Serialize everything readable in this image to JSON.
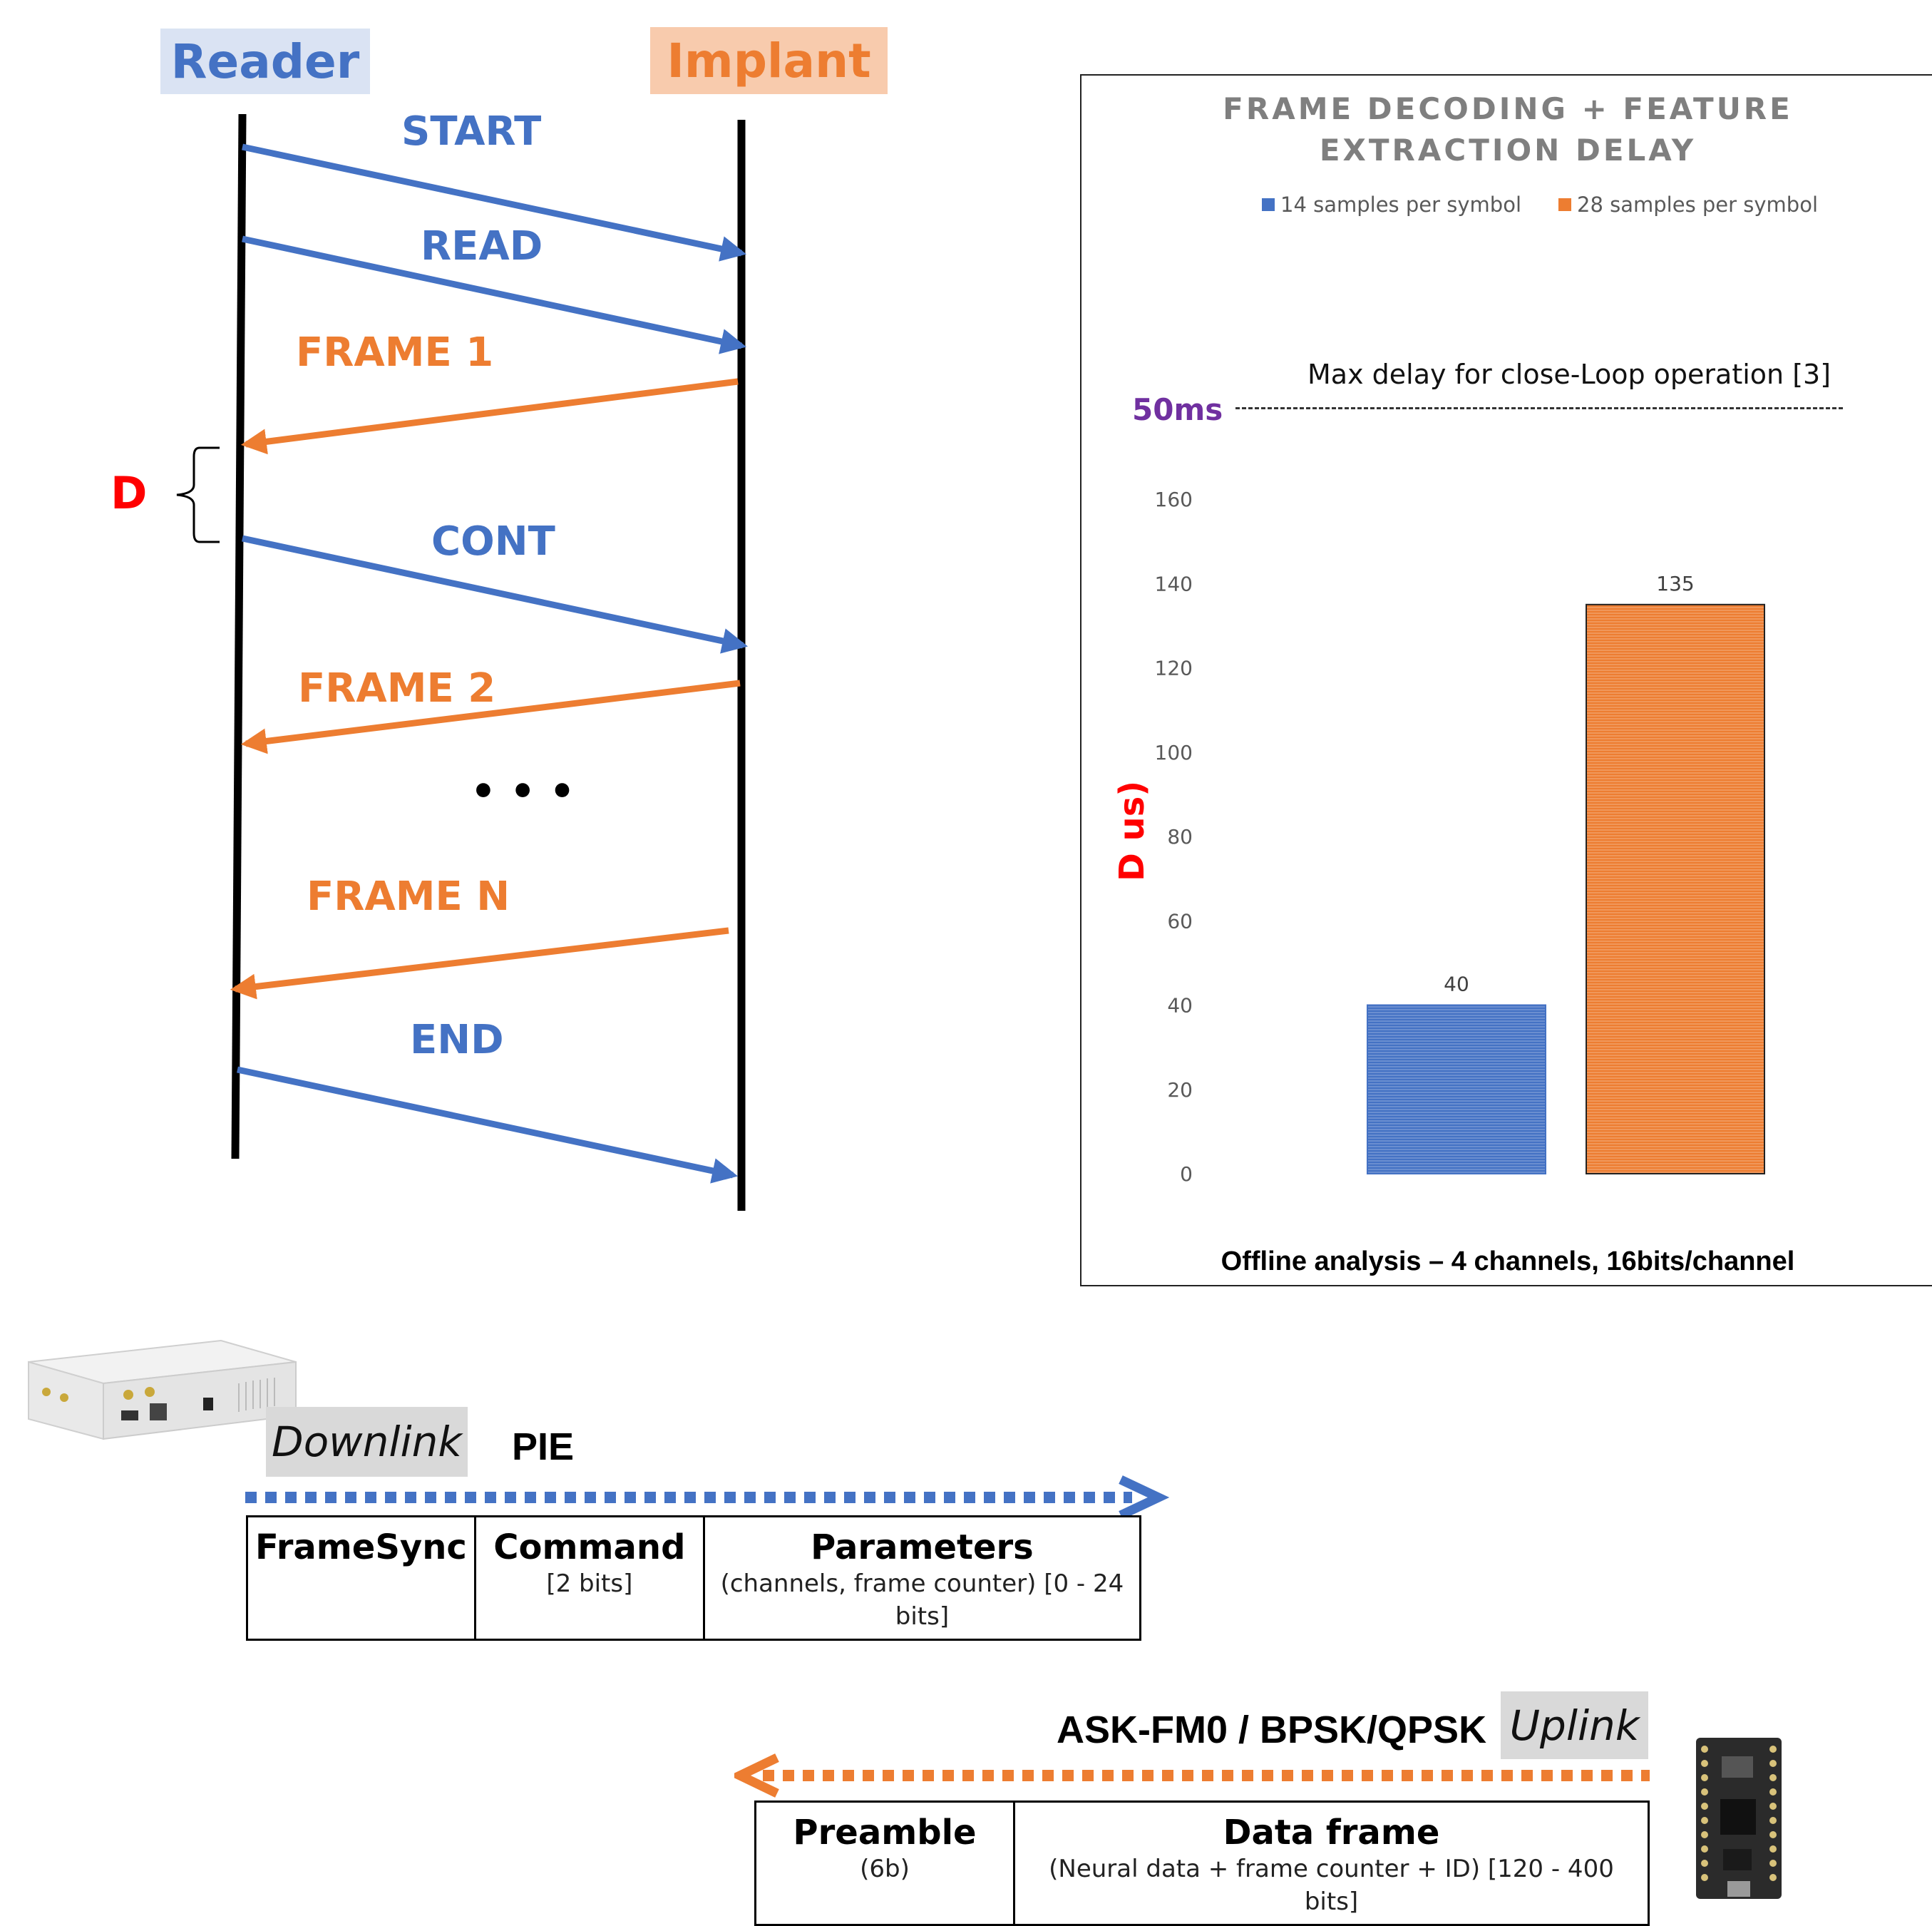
{
  "sequence": {
    "reader_label": "Reader",
    "implant_label": "Implant",
    "messages": [
      {
        "label": "START",
        "dir": "down"
      },
      {
        "label": "READ",
        "dir": "down"
      },
      {
        "label": "FRAME 1",
        "dir": "up"
      },
      {
        "label": "CONT",
        "dir": "down"
      },
      {
        "label": "FRAME 2",
        "dir": "up"
      },
      {
        "label": "FRAME N",
        "dir": "up"
      },
      {
        "label": "END",
        "dir": "down"
      }
    ],
    "ellipsis": "• • •",
    "delay_label": "D"
  },
  "chart": {
    "title_line1": "FRAME DECODING + FEATURE",
    "title_line2": "EXTRACTION  DELAY",
    "threshold_label": "Max delay for close-Loop operation [3]",
    "threshold_value": "50ms",
    "ylabel": "D us)",
    "footer": "Offline analysis – 4 channels, 16bits/channel"
  },
  "chart_data": {
    "type": "bar",
    "categories": [
      ""
    ],
    "series": [
      {
        "name": "14 samples per symbol",
        "values": [
          40
        ]
      },
      {
        "name": "28 samples per symbol",
        "values": [
          135
        ]
      }
    ],
    "yticks": [
      "0",
      "20",
      "40",
      "60",
      "80",
      "100",
      "120",
      "140",
      "160"
    ],
    "ylim": [
      0,
      160
    ],
    "data_labels": [
      "40",
      "135"
    ],
    "legend": "top",
    "colors": [
      "#4472c4",
      "#ed7d31"
    ]
  },
  "downlink": {
    "tag": "Downlink",
    "modulation": "PIE",
    "fields": [
      {
        "name": "FrameSync",
        "detail": ""
      },
      {
        "name": "Command",
        "detail": "[2 bits]"
      },
      {
        "name": "Parameters",
        "detail": "(channels, frame counter)  [0 - 24 bits]"
      }
    ]
  },
  "uplink": {
    "tag": "Uplink",
    "modulation": "ASK-FM0 / BPSK/QPSK",
    "fields": [
      {
        "name": "Preamble",
        "detail": "(6b)"
      },
      {
        "name": "Data frame",
        "detail": "(Neural data + frame counter + ID)  [120 - 400 bits]"
      }
    ]
  }
}
